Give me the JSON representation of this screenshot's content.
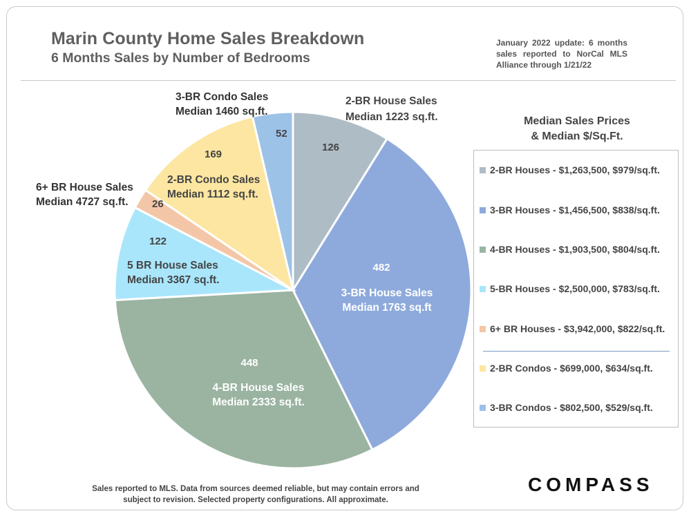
{
  "header": {
    "title": "Marin County Home Sales Breakdown",
    "subtitle": "6 Months Sales by Number of Bedrooms",
    "update_note": "January 2022 update: 6 months sales reported to NorCal MLS Alliance through 1/21/22"
  },
  "chart_data": {
    "type": "pie",
    "title": "Marin County Home Sales Breakdown",
    "subtitle": "6 Months Sales by Number of Bedrooms",
    "slices": [
      {
        "key": "br2house",
        "value": 126,
        "label": "2-BR House Sales",
        "median_sqft": "Median 1223 sq.ft.",
        "color": "#aebcc6"
      },
      {
        "key": "br3house",
        "value": 482,
        "label": "3-BR House Sales",
        "median_sqft": "Median 1763 sq.ft",
        "color": "#8eaadc"
      },
      {
        "key": "br4house",
        "value": 448,
        "label": "4-BR House Sales",
        "median_sqft": "Median 2333 sq.ft.",
        "color": "#9ab4a1"
      },
      {
        "key": "br5house",
        "value": 122,
        "label": "5 BR House Sales",
        "median_sqft": "Median 3367 sq.ft.",
        "color": "#a9e6fb"
      },
      {
        "key": "br6house",
        "value": 26,
        "label": "6+ BR House Sales",
        "median_sqft": "Median 4727 sq.ft.",
        "color": "#f4c6a8"
      },
      {
        "key": "br2condo",
        "value": 169,
        "label": "2-BR Condo Sales",
        "median_sqft": "Median 1112 sq.ft.",
        "color": "#fce6a1"
      },
      {
        "key": "br3condo",
        "value": 52,
        "label": "3-BR Condo Sales",
        "median_sqft": "Median 1460 sq.ft.",
        "color": "#9dc2e8"
      }
    ]
  },
  "legend": {
    "title_line1": "Median Sales Prices",
    "title_line2": "& Median $/Sq.Ft.",
    "items": [
      {
        "text": "2-BR Houses - $1,263,500, $979/sq.ft.",
        "color": "#aebcc6"
      },
      {
        "text": "3-BR Houses - $1,456,500, $838/sq.ft.",
        "color": "#8eaadc"
      },
      {
        "text": "4-BR Houses - $1,903,500, $804/sq.ft.",
        "color": "#9ab4a1"
      },
      {
        "text": "5-BR Houses - $2,500,000, $783/sq.ft.",
        "color": "#a9e6fb"
      },
      {
        "text": "6+ BR Houses - $3,942,000, $822/sq.ft.",
        "color": "#f4c6a8"
      },
      {
        "text": "2-BR Condos - $699,000, $634/sq.ft.",
        "color": "#fce6a1"
      },
      {
        "text": "3-BR Condos - $802,500, $529/sq.ft.",
        "color": "#9dc2e8"
      }
    ]
  },
  "footer": {
    "note_line1": "Sales reported to MLS. Data from sources deemed reliable, but may contain errors and",
    "note_line2": "subject to revision. Selected property configurations. All approximate.",
    "logo": "COMPASS"
  }
}
